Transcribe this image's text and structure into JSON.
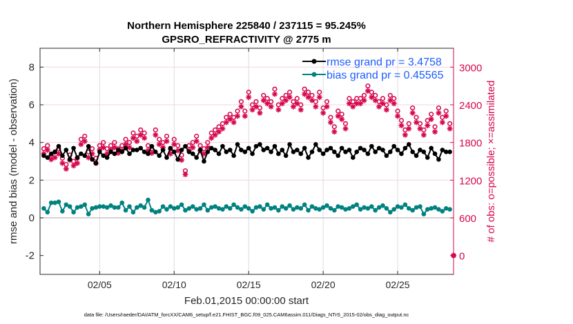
{
  "chart_data": {
    "type": "line",
    "title": [
      "Northern Hemisphere 225840 / 237115 = 95.245%",
      "GPSRO_REFRACTIVITY @ 2775 m"
    ],
    "xlabel": "Feb.01,2015 00:00:00 start",
    "ylabel_left": "rmse and bias (model - observation)",
    "ylabel_right": "# of obs: o=possible; ×=assimilated",
    "footer": "data file: /Users/raeder/DAI/ATM_forcXX/CAM6_setup/f.e21.FHIST_BGC.f09_025.CAM6assim.011/Diags_NTrS_2015-02/obs_diag_output.nc",
    "x_start_day": 1.25,
    "x_step_days": 0.25,
    "xlim_days": [
      1,
      28.75
    ],
    "x_ticks": [
      {
        "day": 5,
        "label": "02/05"
      },
      {
        "day": 10,
        "label": "02/10"
      },
      {
        "day": 15,
        "label": "02/15"
      },
      {
        "day": 20,
        "label": "02/20"
      },
      {
        "day": 25,
        "label": "02/25"
      }
    ],
    "ylim_left": [
      -3,
      9
    ],
    "yticks_left": [
      {
        "v": -2,
        "label": "-2"
      },
      {
        "v": 0,
        "label": "0"
      },
      {
        "v": 2,
        "label": "2"
      },
      {
        "v": 4,
        "label": "4"
      },
      {
        "v": 6,
        "label": "6"
      },
      {
        "v": 8,
        "label": "8"
      }
    ],
    "ylim_right": [
      -300,
      3300
    ],
    "yticks_right": [
      {
        "v": 0,
        "label": "0"
      },
      {
        "v": 600,
        "label": "600"
      },
      {
        "v": 1200,
        "label": "1200"
      },
      {
        "v": 1800,
        "label": "1800"
      },
      {
        "v": 2400,
        "label": "2400"
      },
      {
        "v": 3000,
        "label": "3000"
      }
    ],
    "grid": true,
    "legend_placement": "top-right",
    "colors": {
      "rmse": "#000000",
      "bias": "#00827f",
      "obs": "#d6084f",
      "legend_text": "#1a5cff"
    },
    "series": [
      {
        "name": "rmse grand pr = 3.4758",
        "axis": "left",
        "values": [
          3.3,
          3.2,
          3.4,
          3.5,
          3.8,
          3.3,
          3.6,
          3.1,
          3.7,
          3.2,
          3.4,
          3.3,
          3.8,
          3.1,
          2.9,
          3.5,
          3.3,
          3.2,
          3.5,
          3.4,
          3.6,
          3.5,
          3.7,
          3.4,
          3.6,
          3.6,
          3.7,
          3.5,
          3.4,
          3.8,
          3.5,
          3.3,
          3.6,
          3.2,
          3.7,
          3.5,
          3.1,
          3.6,
          3.8,
          3.5,
          3.4,
          3.2,
          3.6,
          3.0,
          3.5,
          3.7,
          3.6,
          3.4,
          3.8,
          3.5,
          3.6,
          3.3,
          3.9,
          3.6,
          3.5,
          3.7,
          3.4,
          3.8,
          3.9,
          3.6,
          3.7,
          3.5,
          3.8,
          3.4,
          3.6,
          3.3,
          3.9,
          3.5,
          3.6,
          3.4,
          3.7,
          3.2,
          3.5,
          3.9,
          3.6,
          3.4,
          3.6,
          3.7,
          3.5,
          3.3,
          3.7,
          3.5,
          3.6,
          3.2,
          3.5,
          3.7,
          3.6,
          3.4,
          3.8,
          3.5,
          3.7,
          3.6,
          3.3,
          3.5,
          3.8,
          3.6,
          3.4,
          3.7,
          3.9,
          3.5,
          3.3,
          3.6,
          3.5,
          3.2,
          3.7,
          3.4,
          3.1,
          3.6,
          3.5,
          3.5,
          null
        ]
      },
      {
        "name": "bias grand pr = 0.45565",
        "axis": "left",
        "values": [
          0.5,
          0.3,
          0.8,
          0.8,
          0.85,
          0.35,
          0.7,
          0.6,
          0.3,
          0.55,
          0.6,
          0.7,
          0.2,
          0.5,
          0.55,
          0.6,
          0.6,
          0.55,
          0.65,
          0.55,
          0.55,
          0.8,
          0.4,
          0.6,
          0.3,
          0.55,
          0.65,
          0.55,
          0.95,
          0.4,
          0.3,
          0.35,
          0.6,
          0.45,
          0.6,
          0.5,
          0.55,
          0.7,
          0.4,
          0.5,
          0.6,
          0.45,
          0.5,
          0.7,
          0.4,
          0.55,
          0.6,
          0.5,
          0.45,
          0.6,
          0.5,
          0.7,
          0.55,
          0.45,
          0.6,
          0.5,
          0.35,
          0.55,
          0.6,
          0.45,
          0.7,
          0.5,
          0.55,
          0.4,
          0.6,
          0.5,
          0.65,
          0.45,
          0.55,
          0.5,
          0.7,
          0.4,
          0.6,
          0.5,
          0.45,
          0.55,
          0.65,
          0.5,
          0.4,
          0.6,
          0.55,
          0.45,
          0.5,
          0.6,
          0.7,
          0.45,
          0.55,
          0.5,
          0.6,
          0.4,
          0.55,
          0.65,
          0.5,
          0.3,
          0.45,
          0.6,
          0.55,
          0.7,
          0.5,
          0.4,
          0.55,
          0.6,
          0.2,
          0.45,
          0.5,
          0.55,
          0.45,
          0.35,
          0.5,
          0.45,
          null
        ]
      },
      {
        "name": "possible",
        "axis": "right",
        "values": [
          1700,
          1750,
          1600,
          1650,
          1700,
          1550,
          1450,
          1600,
          1500,
          1550,
          1850,
          1900,
          1650,
          1700,
          1550,
          1750,
          1800,
          1700,
          1750,
          1800,
          1700,
          1750,
          1850,
          1800,
          1950,
          1900,
          2000,
          1950,
          1750,
          1700,
          2000,
          1850,
          1800,
          1900,
          1700,
          1850,
          1750,
          1600,
          1350,
          1750,
          1800,
          1900,
          1750,
          1700,
          1800,
          1950,
          2000,
          2050,
          2100,
          2200,
          2250,
          2200,
          2300,
          2450,
          2300,
          2600,
          2400,
          2450,
          2350,
          2550,
          2500,
          2450,
          2650,
          2400,
          2500,
          2550,
          2600,
          2450,
          2500,
          2400,
          2650,
          2600,
          2550,
          2450,
          2600,
          2350,
          2450,
          2200,
          2050,
          2300,
          2250,
          2100,
          2500,
          2450,
          2500,
          2500,
          2550,
          2700,
          2600,
          2550,
          2450,
          2500,
          2400,
          2550,
          2500,
          2300,
          2150,
          2000,
          2100,
          2350,
          2200,
          2100,
          2000,
          2150,
          2250,
          2050,
          2350,
          2200,
          2300,
          2100,
          0
        ]
      },
      {
        "name": "assimilated",
        "axis": "right",
        "values": [
          1620,
          1680,
          1530,
          1560,
          1620,
          1470,
          1380,
          1520,
          1430,
          1470,
          1770,
          1820,
          1560,
          1620,
          1470,
          1680,
          1720,
          1620,
          1680,
          1720,
          1630,
          1670,
          1770,
          1720,
          1870,
          1820,
          1920,
          1870,
          1670,
          1630,
          1920,
          1770,
          1720,
          1820,
          1620,
          1770,
          1670,
          1520,
          1290,
          1670,
          1720,
          1820,
          1670,
          1620,
          1720,
          1870,
          1920,
          1970,
          2020,
          2120,
          2170,
          2120,
          2220,
          2370,
          2220,
          2520,
          2320,
          2370,
          2270,
          2470,
          2420,
          2370,
          2570,
          2320,
          2420,
          2470,
          2520,
          2370,
          2420,
          2320,
          2570,
          2520,
          2470,
          2370,
          2520,
          2270,
          2370,
          2120,
          1970,
          2220,
          2170,
          2020,
          2420,
          2370,
          2420,
          2420,
          2470,
          2620,
          2520,
          2470,
          2370,
          2420,
          2320,
          2470,
          2420,
          2220,
          2070,
          1920,
          2020,
          2270,
          2120,
          2020,
          1920,
          2070,
          2170,
          1970,
          2270,
          2120,
          2220,
          2020,
          0
        ]
      }
    ]
  }
}
